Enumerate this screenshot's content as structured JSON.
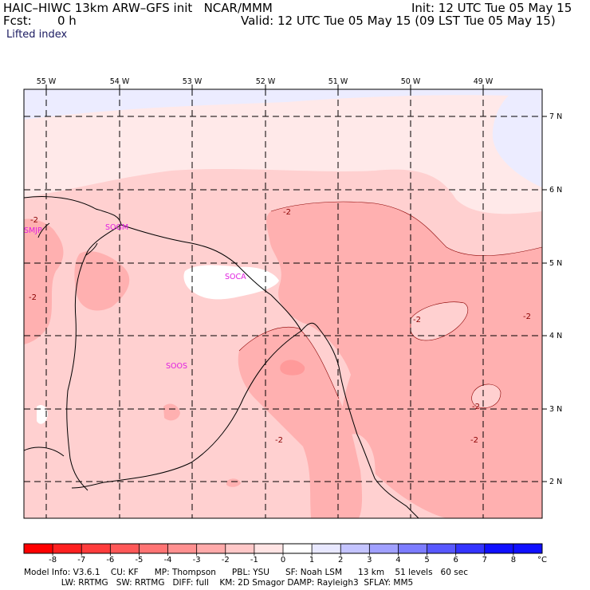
{
  "header": {
    "title": "HAIC–HIWC 13km ARW–GFS init   NCAR/MMM",
    "forecast_label": "Fcst:",
    "forecast_value": "0 h",
    "init": "Init: 12 UTC Tue 05 May 15",
    "valid": "Valid: 12 UTC Tue 05 May 15 (09 LST Tue 05 May 15)",
    "field": "Lifted index"
  },
  "map": {
    "lon_labels": [
      "55 W",
      "54 W",
      "53 W",
      "52 W",
      "51 W",
      "50 W",
      "49 W"
    ],
    "lat_labels": [
      "7 N",
      "6 N",
      "5 N",
      "4 N",
      "3 N",
      "2 N"
    ],
    "contour_labels": [
      "-2",
      "-2",
      "-2",
      "-2",
      "-2",
      "-2",
      "-2",
      "-2"
    ],
    "station_labels": [
      "SMJP",
      "SOGM",
      "SOCA",
      "SOOS"
    ],
    "colors": {
      "station": "#e020e0",
      "bg_pale": "#ffe9e9",
      "band_light": "#ffd0d0",
      "band_mid": "#ffb0b0",
      "band_dark": "#ff9a9a",
      "white": "#ffffff",
      "blue_pale": "#ececff"
    }
  },
  "colorbar": {
    "tick_labels": [
      "-8",
      "-7",
      "-6",
      "-5",
      "-4",
      "-3",
      "-2",
      "-1",
      "0",
      "1",
      "2",
      "3",
      "4",
      "5",
      "6",
      "7",
      "8"
    ],
    "unit": "°C",
    "colors": [
      "#ff0000",
      "#ff2020",
      "#ff3c3c",
      "#ff5858",
      "#ff7474",
      "#ff9090",
      "#ffaaaa",
      "#ffc8c8",
      "#ffe4e4",
      "#ffffff",
      "#e8e8ff",
      "#c4c4ff",
      "#a0a0ff",
      "#7c7cff",
      "#5858ff",
      "#3434ff",
      "#1010ff"
    ]
  },
  "footer": {
    "line1": "Model Info: V3.6.1    CU: KF      MP: Thompson      PBL: YSU      SF: Noah LSM      13 km    51 levels   60 sec",
    "line2": "              LW: RRTMG   SW: RRTMG   DIFF: full    KM: 2D Smagor DAMP: Rayleigh3  SFLAY: MM5"
  }
}
